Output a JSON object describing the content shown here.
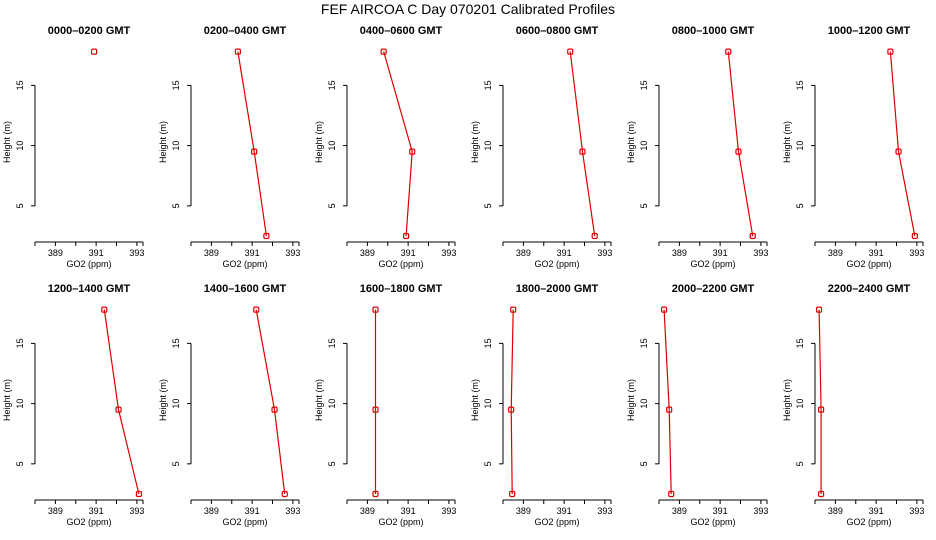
{
  "title": "FEF AIRCOA C  Day 070201  Calibrated Profiles",
  "colors": {
    "series": "#dd0000",
    "axis": "#000000"
  },
  "chart_data": [
    {
      "type": "line",
      "title": "0000–0200 GMT",
      "xlabel": "GO2 (ppm)",
      "ylabel": "Height (m)",
      "xlim": [
        388,
        393.3
      ],
      "ylim": [
        2,
        18.6
      ],
      "xticks": [
        389,
        391,
        393
      ],
      "yticks": [
        5,
        10,
        15
      ],
      "grid": false,
      "points": [
        {
          "x": 390.9,
          "y": 17.8
        }
      ]
    },
    {
      "type": "line",
      "title": "0200–0400 GMT",
      "xlabel": "GO2 (ppm)",
      "ylabel": "Height (m)",
      "xlim": [
        388,
        393.3
      ],
      "ylim": [
        2,
        18.6
      ],
      "xticks": [
        389,
        391,
        393
      ],
      "yticks": [
        5,
        10,
        15
      ],
      "grid": false,
      "points": [
        {
          "x": 390.3,
          "y": 17.8
        },
        {
          "x": 391.1,
          "y": 9.5
        },
        {
          "x": 391.7,
          "y": 2.5
        }
      ]
    },
    {
      "type": "line",
      "title": "0400–0600 GMT",
      "xlabel": "GO2 (ppm)",
      "ylabel": "Height (m)",
      "xlim": [
        388,
        393.3
      ],
      "ylim": [
        2,
        18.6
      ],
      "xticks": [
        389,
        391,
        393
      ],
      "yticks": [
        5,
        10,
        15
      ],
      "grid": false,
      "points": [
        {
          "x": 389.8,
          "y": 17.8
        },
        {
          "x": 391.2,
          "y": 9.5
        },
        {
          "x": 390.9,
          "y": 2.5
        }
      ]
    },
    {
      "type": "line",
      "title": "0600–0800 GMT",
      "xlabel": "GO2 (ppm)",
      "ylabel": "Height (m)",
      "xlim": [
        388,
        393.3
      ],
      "ylim": [
        2,
        18.6
      ],
      "xticks": [
        389,
        391,
        393
      ],
      "yticks": [
        5,
        10,
        15
      ],
      "grid": false,
      "points": [
        {
          "x": 391.3,
          "y": 17.8
        },
        {
          "x": 391.9,
          "y": 9.5
        },
        {
          "x": 392.5,
          "y": 2.5
        }
      ]
    },
    {
      "type": "line",
      "title": "0800–1000 GMT",
      "xlabel": "GO2 (ppm)",
      "ylabel": "Height (m)",
      "xlim": [
        388,
        393.3
      ],
      "ylim": [
        2,
        18.6
      ],
      "xticks": [
        389,
        391,
        393
      ],
      "yticks": [
        5,
        10,
        15
      ],
      "grid": false,
      "points": [
        {
          "x": 391.4,
          "y": 17.8
        },
        {
          "x": 391.9,
          "y": 9.5
        },
        {
          "x": 392.6,
          "y": 2.5
        }
      ]
    },
    {
      "type": "line",
      "title": "1000–1200 GMT",
      "xlabel": "GO2 (ppm)",
      "ylabel": "Height (m)",
      "xlim": [
        388,
        393.3
      ],
      "ylim": [
        2,
        18.6
      ],
      "xticks": [
        389,
        391,
        393
      ],
      "yticks": [
        5,
        10,
        15
      ],
      "grid": false,
      "points": [
        {
          "x": 391.7,
          "y": 17.8
        },
        {
          "x": 392.1,
          "y": 9.5
        },
        {
          "x": 392.9,
          "y": 2.5
        }
      ]
    },
    {
      "type": "line",
      "title": "1200–1400 GMT",
      "xlabel": "GO2 (ppm)",
      "ylabel": "Height (m)",
      "xlim": [
        388,
        393.3
      ],
      "ylim": [
        2,
        18.6
      ],
      "xticks": [
        389,
        391,
        393
      ],
      "yticks": [
        5,
        10,
        15
      ],
      "grid": false,
      "points": [
        {
          "x": 391.4,
          "y": 17.8
        },
        {
          "x": 392.1,
          "y": 9.5
        },
        {
          "x": 393.1,
          "y": 2.5
        }
      ]
    },
    {
      "type": "line",
      "title": "1400–1600 GMT",
      "xlabel": "GO2 (ppm)",
      "ylabel": "Height (m)",
      "xlim": [
        388,
        393.3
      ],
      "ylim": [
        2,
        18.6
      ],
      "xticks": [
        389,
        391,
        393
      ],
      "yticks": [
        5,
        10,
        15
      ],
      "grid": false,
      "points": [
        {
          "x": 391.2,
          "y": 17.8
        },
        {
          "x": 392.1,
          "y": 9.5
        },
        {
          "x": 392.6,
          "y": 2.5
        }
      ]
    },
    {
      "type": "line",
      "title": "1600–1800 GMT",
      "xlabel": "GO2 (ppm)",
      "ylabel": "Height (m)",
      "xlim": [
        388,
        393.3
      ],
      "ylim": [
        2,
        18.6
      ],
      "xticks": [
        389,
        391,
        393
      ],
      "yticks": [
        5,
        10,
        15
      ],
      "grid": false,
      "points": [
        {
          "x": 389.4,
          "y": 17.8
        },
        {
          "x": 389.4,
          "y": 9.5
        },
        {
          "x": 389.4,
          "y": 2.5
        }
      ]
    },
    {
      "type": "line",
      "title": "1800–2000 GMT",
      "xlabel": "GO2 (ppm)",
      "ylabel": "Height (m)",
      "xlim": [
        388,
        393.3
      ],
      "ylim": [
        2,
        18.6
      ],
      "xticks": [
        389,
        391,
        393
      ],
      "yticks": [
        5,
        10,
        15
      ],
      "grid": false,
      "points": [
        {
          "x": 388.5,
          "y": 17.8
        },
        {
          "x": 388.4,
          "y": 9.5
        },
        {
          "x": 388.45,
          "y": 2.5
        }
      ]
    },
    {
      "type": "line",
      "title": "2000–2200 GMT",
      "xlabel": "GO2 (ppm)",
      "ylabel": "Height (m)",
      "xlim": [
        388,
        393.3
      ],
      "ylim": [
        2,
        18.6
      ],
      "xticks": [
        389,
        391,
        393
      ],
      "yticks": [
        5,
        10,
        15
      ],
      "grid": false,
      "points": [
        {
          "x": 388.25,
          "y": 17.8
        },
        {
          "x": 388.5,
          "y": 9.5
        },
        {
          "x": 388.6,
          "y": 2.5
        }
      ]
    },
    {
      "type": "line",
      "title": "2200–2400 GMT",
      "xlabel": "GO2 (ppm)",
      "ylabel": "Height (m)",
      "xlim": [
        388,
        393.3
      ],
      "ylim": [
        2,
        18.6
      ],
      "xticks": [
        389,
        391,
        393
      ],
      "yticks": [
        5,
        10,
        15
      ],
      "grid": false,
      "points": [
        {
          "x": 388.2,
          "y": 17.8
        },
        {
          "x": 388.3,
          "y": 9.5
        },
        {
          "x": 388.3,
          "y": 2.5
        }
      ]
    }
  ]
}
